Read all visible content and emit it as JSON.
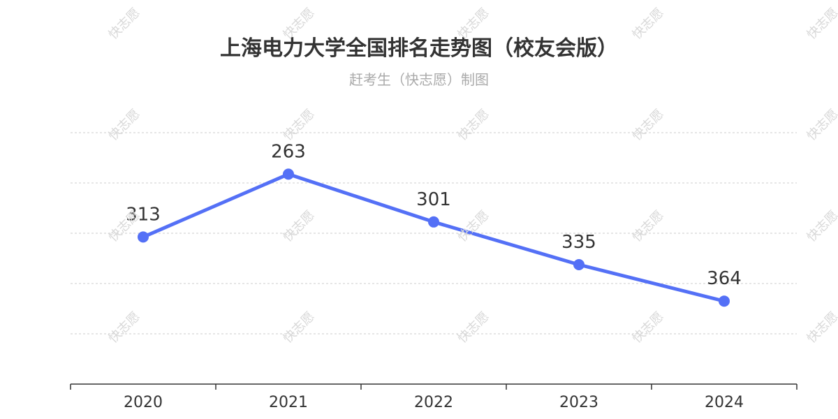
{
  "title": "上海电力大学全国排名走势图（校友会版）",
  "subtitle": "赶考生（快志愿）制图",
  "watermark": "快志愿",
  "colors": {
    "line": "#5470f6",
    "title": "#333333",
    "subtitle": "#aaaaaa",
    "grid": "#cccccc",
    "axis": "#333333"
  },
  "chart_data": {
    "type": "line",
    "title": "上海电力大学全国排名走势图（校友会版）",
    "subtitle": "赶考生（快志愿）制图",
    "categories": [
      "2020",
      "2021",
      "2022",
      "2023",
      "2024"
    ],
    "series": [
      {
        "values": [
          313,
          263,
          301,
          335,
          364
        ]
      }
    ],
    "yaxis": {
      "inverse": true,
      "range": [
        230,
        390
      ],
      "tick_labels_shown": false
    },
    "grid": true,
    "data_labels": true,
    "legend": "none"
  }
}
